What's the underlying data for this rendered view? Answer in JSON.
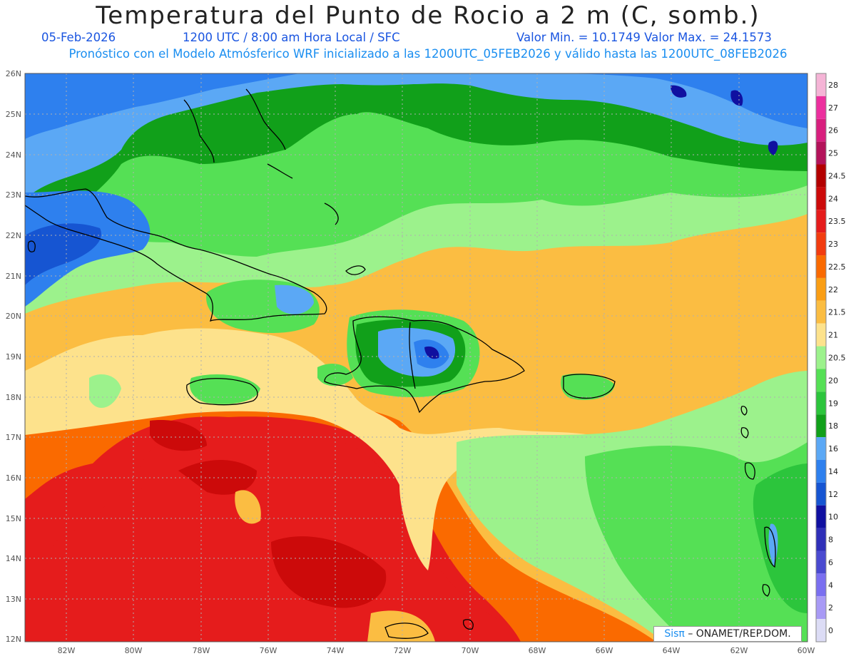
{
  "header": {
    "title": "Temperatura del Punto de Rocio a 2 m (C, somb.)",
    "date": "05-Feb-2026",
    "time": "1200 UTC / 8:00 am Hora Local / SFC",
    "minmax": "Valor Min. = 10.1749  Valor Max. = 24.1573",
    "model_line": "Pronóstico con el Modelo Atmósferico WRF inicializado a las 1200UTC_05FEB2026 y válido hasta las  1200UTC_08FEB2026"
  },
  "map": {
    "lat_labels": [
      "26N",
      "25N",
      "24N",
      "23N",
      "22N",
      "21N",
      "20N",
      "19N",
      "18N",
      "17N",
      "16N",
      "15N",
      "14N",
      "13N",
      "12N"
    ],
    "lon_labels": [
      "82W",
      "80W",
      "78W",
      "76W",
      "74W",
      "72W",
      "70W",
      "68W",
      "66W",
      "64W",
      "62W",
      "60W"
    ],
    "lat_range": [
      12,
      26
    ],
    "lon_range": [
      -83.2,
      -60
    ],
    "grid": true
  },
  "colorbar": {
    "labels": [
      "28",
      "27",
      "26",
      "25",
      "24.5",
      "24",
      "23.5",
      "23",
      "22.5",
      "22",
      "21.5",
      "21",
      "20.5",
      "20",
      "19",
      "18",
      "16",
      "14",
      "12",
      "10",
      "8",
      "6",
      "4",
      "2",
      "0"
    ],
    "colors": [
      "#f5b4d6",
      "#ec2f9e",
      "#d81f7e",
      "#b3135a",
      "#b30000",
      "#cc0a0a",
      "#e51c1c",
      "#f23c0f",
      "#fa6a00",
      "#fa9e14",
      "#fbbd42",
      "#fde28c",
      "#9cf28c",
      "#55e055",
      "#2cc53c",
      "#11a01a",
      "#5ba8f5",
      "#2e80ee",
      "#1655d2",
      "#1010a0",
      "#2f2fb8",
      "#4a4ad0",
      "#7a6ff0",
      "#a89af5",
      "#dcdcf5"
    ]
  },
  "credit": {
    "brand": "Sisπ",
    "text": "– ONAMET/REP.DOM."
  }
}
